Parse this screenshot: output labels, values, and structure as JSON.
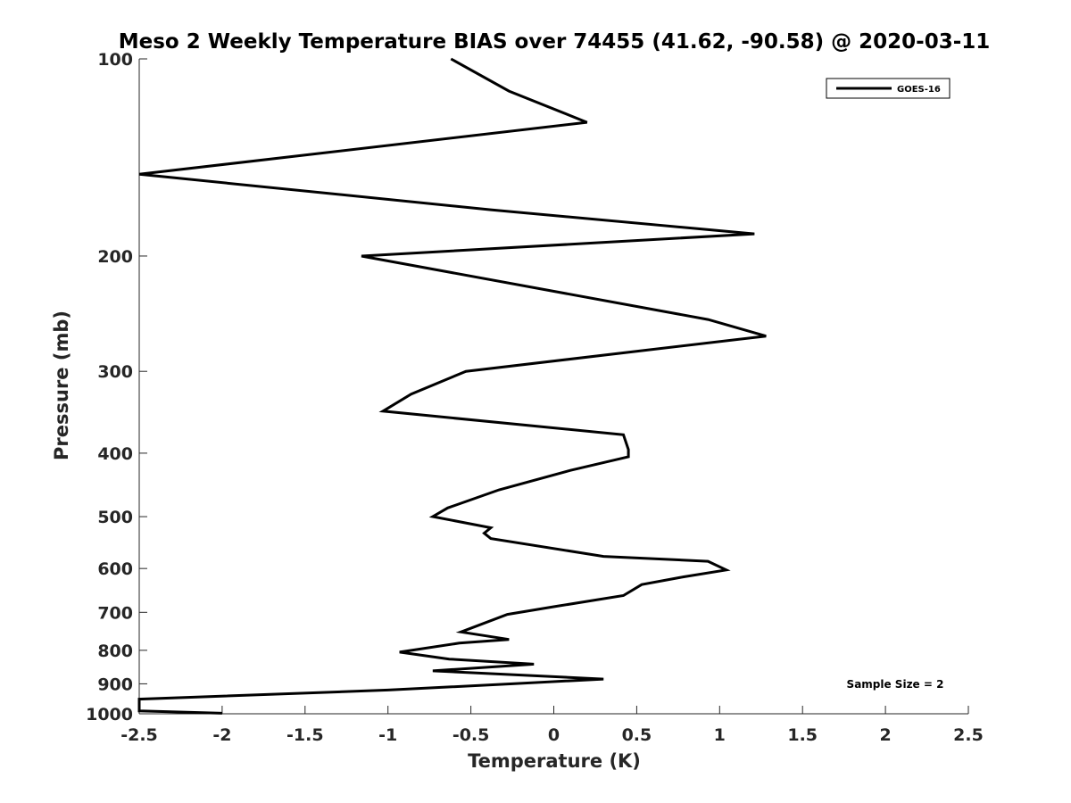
{
  "chart_data": {
    "type": "line",
    "title": "Meso 2 Weekly Temperature BIAS over 74455 (41.62, -90.58) @ 2020-03-11",
    "xlabel": "Temperature (K)",
    "ylabel": "Pressure (mb)",
    "xlim": [
      -2.5,
      2.5
    ],
    "ylim": [
      100,
      1000
    ],
    "y_scale": "log",
    "y_reversed": true,
    "x_ticks": [
      "-2.5",
      "-2",
      "-1.5",
      "-1",
      "-0.5",
      "0",
      "0.5",
      "1",
      "1.5",
      "2",
      "2.5"
    ],
    "y_ticks": [
      "100",
      "200",
      "300",
      "400",
      "500",
      "600",
      "700",
      "800",
      "900",
      "1000"
    ],
    "grid": false,
    "legend_position": "top-right",
    "annotation": "Sample Size = 2",
    "series": [
      {
        "name": "GOES-16",
        "color": "#000000",
        "points": [
          [
            -0.62,
            100
          ],
          [
            -0.27,
            112
          ],
          [
            0.2,
            125
          ],
          [
            -2.5,
            150
          ],
          [
            -0.38,
            170
          ],
          [
            1.21,
            185
          ],
          [
            -1.16,
            200
          ],
          [
            0.93,
            250
          ],
          [
            1.28,
            265
          ],
          [
            -0.53,
            300
          ],
          [
            -0.86,
            325
          ],
          [
            -1.03,
            345
          ],
          [
            0.42,
            375
          ],
          [
            0.45,
            395
          ],
          [
            0.45,
            405
          ],
          [
            0.1,
            425
          ],
          [
            -0.33,
            455
          ],
          [
            -0.64,
            485
          ],
          [
            -0.73,
            500
          ],
          [
            -0.38,
            520
          ],
          [
            -0.42,
            530
          ],
          [
            -0.38,
            540
          ],
          [
            0.3,
            575
          ],
          [
            0.93,
            585
          ],
          [
            1.04,
            603
          ],
          [
            0.78,
            618
          ],
          [
            0.53,
            635
          ],
          [
            0.42,
            660
          ],
          [
            0.02,
            685
          ],
          [
            -0.28,
            705
          ],
          [
            -0.56,
            750
          ],
          [
            -0.27,
            770
          ],
          [
            -0.57,
            780
          ],
          [
            -0.93,
            805
          ],
          [
            -0.63,
            825
          ],
          [
            -0.12,
            840
          ],
          [
            -0.73,
            860
          ],
          [
            0.3,
            885
          ],
          [
            -0.25,
            900
          ],
          [
            -1.0,
            920
          ],
          [
            -2.5,
            950
          ],
          [
            -2.5,
            990
          ],
          [
            -2.0,
            998
          ]
        ]
      }
    ]
  }
}
